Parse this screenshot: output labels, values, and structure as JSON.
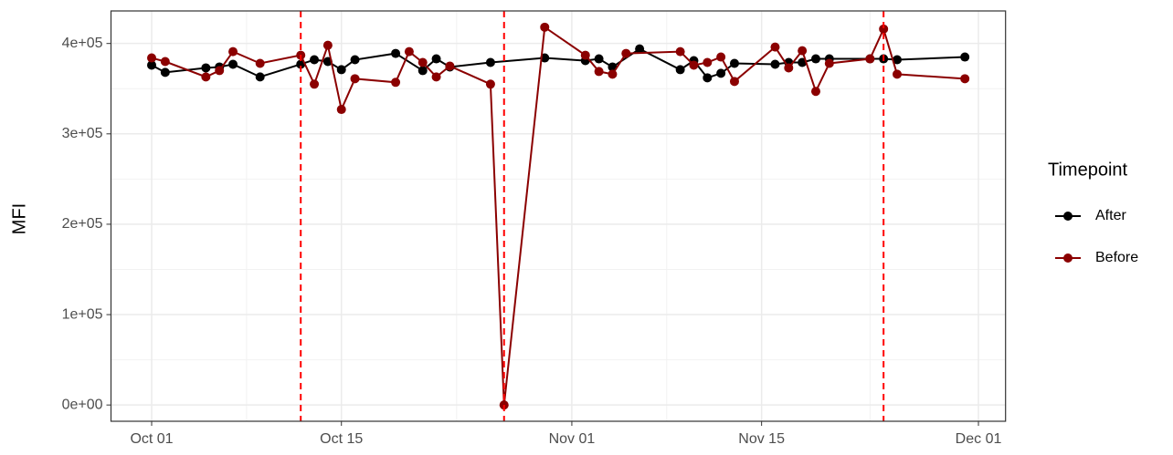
{
  "chart_data": {
    "type": "line",
    "y_label": "MFI",
    "legend_title": "Timepoint",
    "legend": "right",
    "grid": true,
    "xlim": [
      "Sep 28",
      "Dec 03"
    ],
    "xticks": [
      "Oct 01",
      "Oct 15",
      "Nov 01",
      "Nov 15",
      "Dec 01"
    ],
    "ylim": [
      -18000,
      436000
    ],
    "yticks": [
      {
        "value": 0,
        "label": "0e+00"
      },
      {
        "value": 100000,
        "label": "1e+05"
      },
      {
        "value": 200000,
        "label": "2e+05"
      },
      {
        "value": 300000,
        "label": "3e+05"
      },
      {
        "value": 400000,
        "label": "4e+05"
      }
    ],
    "vlines": [
      "Oct 12",
      "Oct 27",
      "Nov 24"
    ],
    "vline_color": "#ff0000",
    "series": [
      {
        "name": "After",
        "color": "#000000",
        "x": [
          "Oct 01",
          "Oct 02",
          "Oct 05",
          "Oct 06",
          "Oct 07",
          "Oct 09",
          "Oct 12",
          "Oct 13",
          "Oct 14",
          "Oct 15",
          "Oct 16",
          "Oct 19",
          "Oct 21",
          "Oct 22",
          "Oct 23",
          "Oct 26",
          "Oct 30",
          "Nov 02",
          "Nov 03",
          "Nov 04",
          "Nov 06",
          "Nov 09",
          "Nov 10",
          "Nov 11",
          "Nov 12",
          "Nov 13",
          "Nov 16",
          "Nov 17",
          "Nov 18",
          "Nov 19",
          "Nov 20",
          "Nov 23",
          "Nov 24",
          "Nov 25",
          "Nov 30"
        ],
        "values": [
          376000,
          368000,
          373000,
          374000,
          377000,
          363000,
          377000,
          382000,
          380000,
          371000,
          382000,
          389000,
          370000,
          383000,
          374000,
          379000,
          384000,
          381000,
          383000,
          374000,
          394000,
          371000,
          381000,
          362000,
          367000,
          378000,
          377000,
          379000,
          379000,
          383000,
          383000,
          383000,
          383000,
          382000,
          385000
        ]
      },
      {
        "name": "Before",
        "color": "#8b0000",
        "x": [
          "Oct 01",
          "Oct 02",
          "Oct 05",
          "Oct 06",
          "Oct 07",
          "Oct 09",
          "Oct 12",
          "Oct 13",
          "Oct 14",
          "Oct 15",
          "Oct 16",
          "Oct 19",
          "Oct 20",
          "Oct 21",
          "Oct 22",
          "Oct 23",
          "Oct 26",
          "Oct 27",
          "Oct 30",
          "Nov 02",
          "Nov 03",
          "Nov 04",
          "Nov 05",
          "Nov 09",
          "Nov 10",
          "Nov 11",
          "Nov 12",
          "Nov 13",
          "Nov 16",
          "Nov 17",
          "Nov 18",
          "Nov 19",
          "Nov 20",
          "Nov 23",
          "Nov 24",
          "Nov 25",
          "Nov 30"
        ],
        "values": [
          384000,
          380000,
          363000,
          370000,
          391000,
          378000,
          387000,
          355000,
          398000,
          327000,
          361000,
          357000,
          391000,
          379000,
          363000,
          375000,
          355000,
          0,
          418000,
          387000,
          369000,
          366000,
          389000,
          391000,
          376000,
          379000,
          385000,
          358000,
          396000,
          373000,
          392000,
          347000,
          378000,
          383000,
          416000,
          366000,
          361000
        ]
      }
    ]
  }
}
